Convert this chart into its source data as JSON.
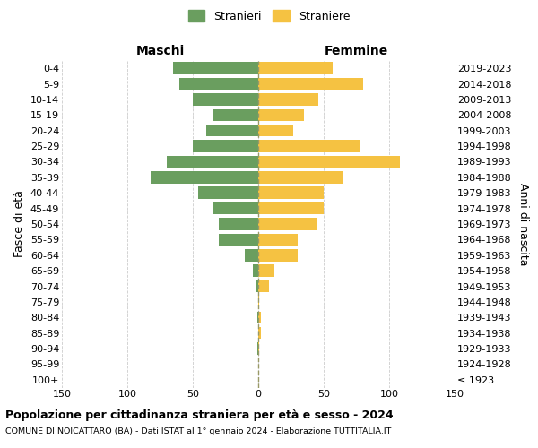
{
  "age_groups": [
    "100+",
    "95-99",
    "90-94",
    "85-89",
    "80-84",
    "75-79",
    "70-74",
    "65-69",
    "60-64",
    "55-59",
    "50-54",
    "45-49",
    "40-44",
    "35-39",
    "30-34",
    "25-29",
    "20-24",
    "15-19",
    "10-14",
    "5-9",
    "0-4"
  ],
  "birth_years": [
    "≤ 1923",
    "1924-1928",
    "1929-1933",
    "1934-1938",
    "1939-1943",
    "1944-1948",
    "1949-1953",
    "1954-1958",
    "1959-1963",
    "1964-1968",
    "1969-1973",
    "1974-1978",
    "1979-1983",
    "1984-1988",
    "1989-1993",
    "1994-1998",
    "1999-2003",
    "2004-2008",
    "2009-2013",
    "2014-2018",
    "2019-2023"
  ],
  "males": [
    0,
    0,
    1,
    0,
    1,
    0,
    2,
    4,
    10,
    30,
    30,
    35,
    46,
    82,
    70,
    50,
    40,
    35,
    50,
    60,
    65
  ],
  "females": [
    0,
    0,
    1,
    2,
    2,
    1,
    8,
    12,
    30,
    30,
    45,
    50,
    50,
    65,
    108,
    78,
    27,
    35,
    46,
    80,
    57
  ],
  "male_color": "#6a9e5f",
  "female_color": "#f5c242",
  "grid_color": "#cccccc",
  "dashed_line_color": "#999966",
  "title": "Popolazione per cittadinanza straniera per età e sesso - 2024",
  "subtitle": "COMUNE DI NOICATTARO (BA) - Dati ISTAT al 1° gennaio 2024 - Elaborazione TUTTITALIA.IT",
  "xlabel_left": "Maschi",
  "xlabel_right": "Femmine",
  "ylabel_left": "Fasce di età",
  "ylabel_right": "Anni di nascita",
  "legend_male": "Stranieri",
  "legend_female": "Straniere",
  "xlim": 150,
  "background_color": "#ffffff",
  "fig_width": 6.0,
  "fig_height": 5.0,
  "dpi": 100
}
